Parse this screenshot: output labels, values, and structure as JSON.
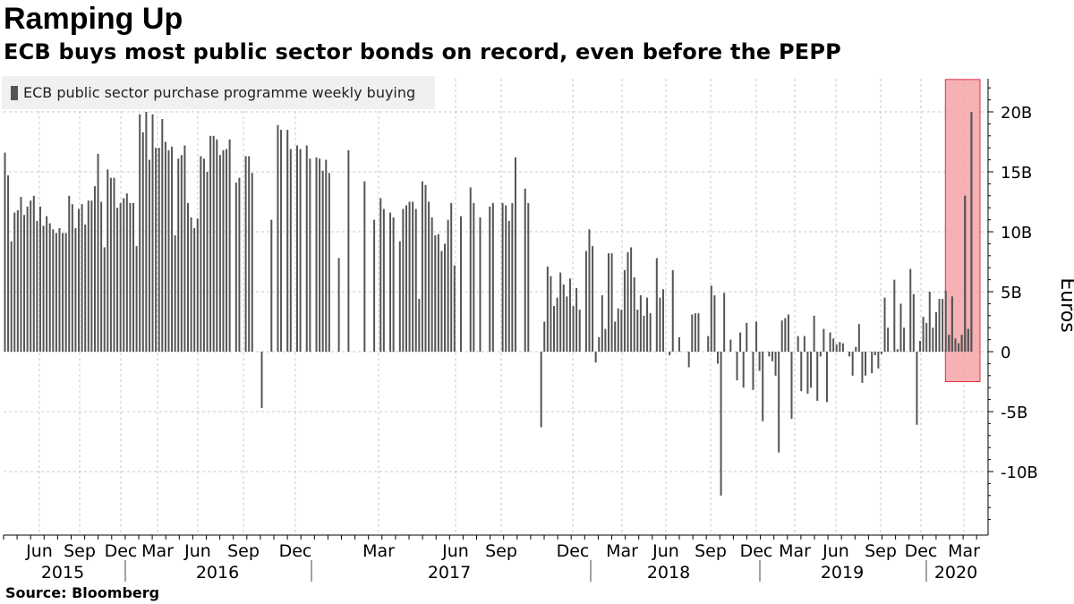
{
  "header": {
    "title": "Ramping Up",
    "subtitle": "ECB buys most public sector bonds on record, even before the PEPP"
  },
  "source": "Source: Bloomberg",
  "colors": {
    "bar": "#555555",
    "highlight_fill": "#f4a3a8",
    "highlight_stroke": "#e0303f"
  },
  "chart_data": {
    "type": "bar",
    "legend": [
      "ECB public sector purchase programme weekly buying"
    ],
    "legend_position": "top-left",
    "ylabel": "Euros",
    "ylim": [
      -15,
      23
    ],
    "y_ticks": [
      20,
      15,
      10,
      5,
      0,
      -5,
      -10
    ],
    "y_tick_labels": [
      "20B",
      "15B",
      "10B",
      "5B",
      "0",
      "-5B",
      "-10B"
    ],
    "y_axis_side": "right",
    "grid": true,
    "x_month_labels": [
      "Jun",
      "Sep",
      "Dec",
      "Mar",
      "Jun",
      "Sep",
      "Dec",
      "Mar",
      "Jun",
      "Sep",
      "Dec",
      "Mar",
      "Jun",
      "Sep",
      "Dec",
      "Mar",
      "Jun",
      "Sep",
      "Dec",
      "Mar"
    ],
    "x_year_labels": [
      "2015",
      "2016",
      "2017",
      "2018",
      "2019",
      "2020"
    ],
    "highlight": {
      "description": "latest weeks",
      "ymin": -2.5,
      "ymax": 22.7
    },
    "series": [
      {
        "name": "ECB public sector purchase programme weekly buying",
        "unit": "EUR bn",
        "values": [
          16.6,
          14.7,
          9.2,
          11.6,
          11.8,
          12.9,
          11.4,
          12.1,
          12.6,
          13.0,
          10.9,
          12.1,
          10.5,
          11.3,
          10.7,
          10.2,
          9.9,
          10.3,
          9.9,
          9.9,
          13.0,
          12.3,
          10.3,
          11.9,
          12.3,
          10.6,
          12.6,
          12.6,
          13.8,
          16.5,
          12.5,
          8.7,
          15.2,
          14.5,
          14.5,
          12.0,
          12.4,
          12.8,
          13.2,
          12.4,
          12.4,
          8.8,
          19.8,
          18.3,
          20.0,
          16.0,
          19.8,
          17.0,
          17.0,
          19.4,
          17.5,
          16.8,
          17.1,
          9.7,
          16.1,
          16.4,
          17.2,
          12.4,
          11.2,
          10.3,
          11.1,
          16.3,
          16.1,
          15.0,
          18.0,
          18.0,
          17.7,
          16.4,
          16.8,
          16.9,
          17.7,
          0,
          14.1,
          14.5,
          0,
          16.3,
          16.3,
          14.9,
          0,
          0,
          -4.7,
          0,
          0,
          11.0,
          0,
          18.9,
          18.5,
          0,
          18.5,
          16.9,
          0,
          17.2,
          16.9,
          0,
          17.2,
          16.1,
          0,
          16.2,
          16.1,
          15.1,
          16.0,
          14.9,
          0,
          0,
          7.8,
          0,
          0,
          16.8,
          0,
          0,
          0,
          0,
          14.2,
          0,
          0,
          11.0,
          0,
          12.8,
          11.9,
          0,
          11.6,
          11.2,
          0,
          9.2,
          11.9,
          12.2,
          12.5,
          12.5,
          11.9,
          4.4,
          14.2,
          13.9,
          12.5,
          11.2,
          9.7,
          9.8,
          8.4,
          9.0,
          11.0,
          12.4,
          7.2,
          0,
          11.3,
          0,
          0,
          13.7,
          12.4,
          0,
          11.2,
          0,
          0,
          12.1,
          12.4,
          0,
          0,
          12.4,
          12.2,
          10.9,
          12.4,
          16.2,
          0,
          0,
          13.6,
          12.4,
          0,
          0,
          0,
          -6.3,
          2.5,
          7.1,
          6.3,
          3.8,
          4.5,
          6.6,
          5.6,
          4.6,
          6.1,
          3.8,
          5.3,
          3.5,
          0,
          8.4,
          10.2,
          8.8,
          -0.9,
          1.2,
          4.7,
          1.9,
          8.2,
          8.2,
          2.5,
          3.6,
          3.5,
          6.8,
          8.3,
          8.7,
          6.2,
          3.5,
          4.7,
          3.0,
          4.5,
          3.2,
          0,
          7.8,
          4.5,
          5.2,
          0,
          -0.3,
          6.8,
          0,
          1.2,
          0,
          0,
          -1.3,
          3.1,
          3.2,
          3.2,
          0,
          0,
          1.3,
          5.5,
          4.7,
          -1.0,
          -12.0,
          4.9,
          0,
          1.0,
          0,
          -2.4,
          1.6,
          -3.0,
          2.4,
          0,
          -3.2,
          2.5,
          -1.6,
          -5.8,
          0,
          -0.4,
          -0.8,
          -2.0,
          -8.4,
          2.6,
          2.8,
          3.1,
          -5.6,
          0,
          1.3,
          -3.3,
          1.3,
          -3.5,
          -3.0,
          3.0,
          -4.1,
          -0.4,
          1.9,
          -4.2,
          1.6,
          1.1,
          0.6,
          0.8,
          0.7,
          0,
          -0.4,
          -2.0,
          0.4,
          2.3,
          -2.6,
          -2.0,
          0,
          -1.8,
          -0.3,
          -1.4,
          -0.2,
          4.5,
          2.0,
          0,
          6.0,
          0.2,
          4.0,
          2.0,
          0,
          6.9,
          4.8,
          -6.1,
          0.9,
          2.9,
          2.4,
          5.0,
          2.0,
          3.3,
          4.4,
          4.4,
          5.1,
          1.4,
          4.6,
          1.1,
          0.7,
          1.4,
          13.0,
          1.9,
          20.0,
          0
        ]
      }
    ]
  }
}
